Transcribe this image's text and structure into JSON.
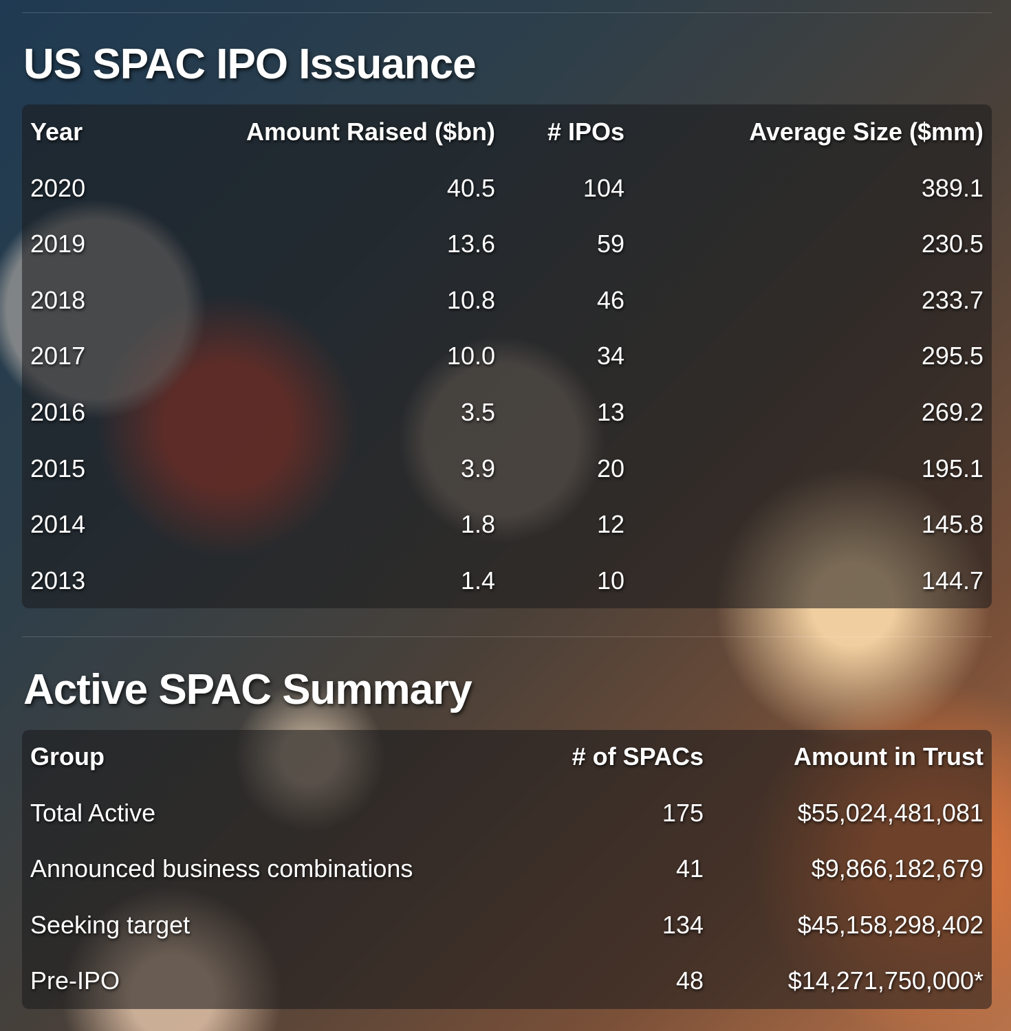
{
  "sections": [
    {
      "title": "US SPAC IPO Issuance",
      "table": {
        "headers": [
          "Year",
          "Amount Raised ($bn)",
          "# IPOs",
          "Average Size ($mm)"
        ],
        "rows": [
          [
            "2020",
            "40.5",
            "104",
            "389.1"
          ],
          [
            "2019",
            "13.6",
            "59",
            "230.5"
          ],
          [
            "2018",
            "10.8",
            "46",
            "233.7"
          ],
          [
            "2017",
            "10.0",
            "34",
            "295.5"
          ],
          [
            "2016",
            "3.5",
            "13",
            "269.2"
          ],
          [
            "2015",
            "3.9",
            "20",
            "195.1"
          ],
          [
            "2014",
            "1.8",
            "12",
            "145.8"
          ],
          [
            "2013",
            "1.4",
            "10",
            "144.7"
          ]
        ]
      }
    },
    {
      "title": "Active SPAC Summary",
      "table": {
        "headers": [
          "Group",
          "# of SPACs",
          "Amount in Trust"
        ],
        "rows": [
          [
            "Total Active",
            "175",
            "$55,024,481,081"
          ],
          [
            "Announced business combinations",
            "41",
            "$9,866,182,679"
          ],
          [
            "Seeking target",
            "134",
            "$45,158,298,402"
          ],
          [
            "Pre-IPO",
            "48",
            "$14,271,750,000*"
          ]
        ]
      }
    }
  ]
}
